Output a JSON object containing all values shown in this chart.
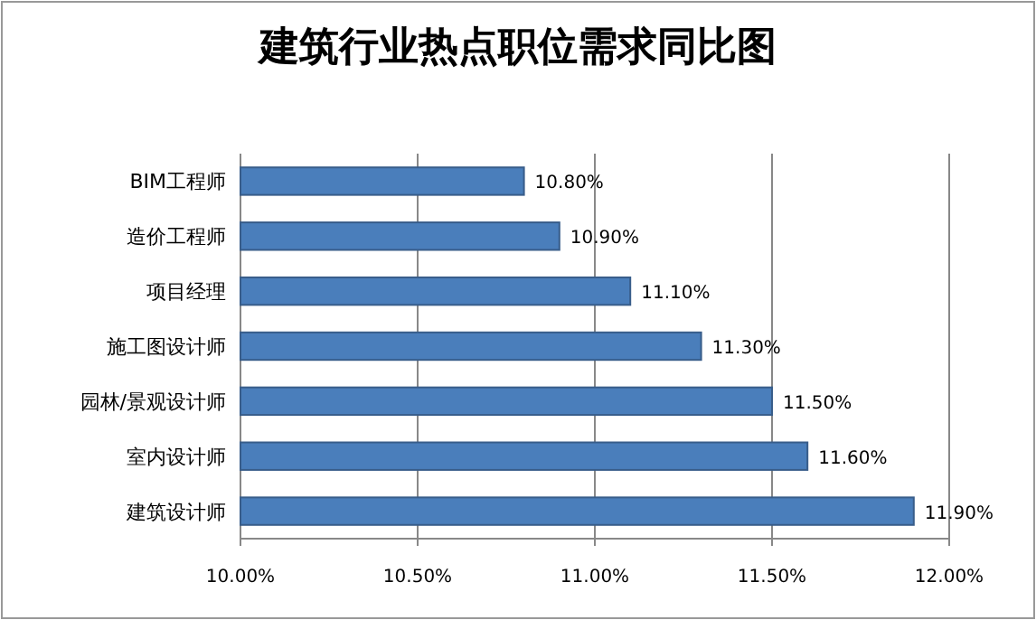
{
  "chart_data": {
    "type": "bar",
    "orientation": "horizontal",
    "title": "建筑行业热点职位需求同比图",
    "categories": [
      "BIM工程师",
      "造价工程师",
      "项目经理",
      "施工图设计师",
      "园林/景观设计师",
      "室内设计师",
      "建筑设计师"
    ],
    "values": [
      10.8,
      10.9,
      11.1,
      11.3,
      11.5,
      11.6,
      11.9
    ],
    "value_labels": [
      "10.80%",
      "10.90%",
      "11.10%",
      "11.30%",
      "11.50%",
      "11.60%",
      "11.90%"
    ],
    "color": "#4a7ebb",
    "xlim": [
      10,
      12
    ],
    "xticks": [
      {
        "value": 10,
        "label": "10.00%"
      },
      {
        "value": 10.5,
        "label": "10.50%"
      },
      {
        "value": 11,
        "label": "11.00%"
      },
      {
        "value": 11.5,
        "label": "11.50%"
      },
      {
        "value": 12,
        "label": "12.00%"
      }
    ],
    "grid": "x"
  }
}
